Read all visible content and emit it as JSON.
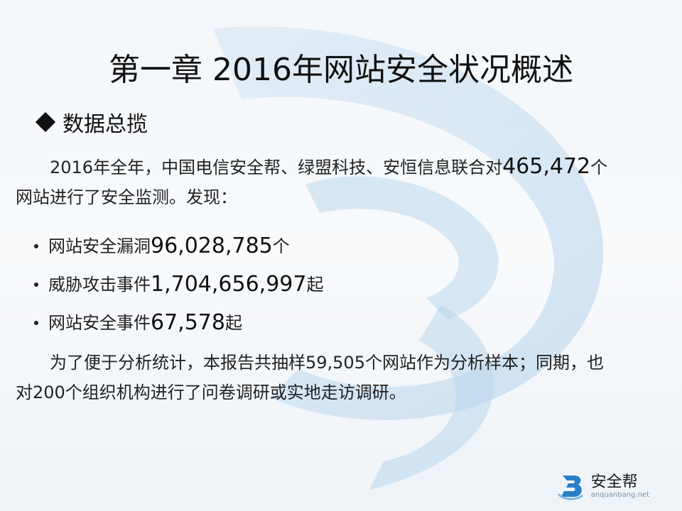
{
  "title": "第一章 2016年网站安全状况概述",
  "section": {
    "title": "数据总揽"
  },
  "intro": {
    "pre": "2016年全年，中国电信安全帮、绿盟科技、安恒信息联合对",
    "count": "465,472",
    "unit": "个",
    "line2": "网站进行了安全监测。发现："
  },
  "bullets": [
    {
      "label": "网站安全漏洞",
      "value": "96,028,785",
      "unit": "个"
    },
    {
      "label": "威胁攻击事件",
      "value": "1,704,656,997",
      "unit": "起"
    },
    {
      "label": "网站安全事件",
      "value": "67,578",
      "unit": "起"
    }
  ],
  "summary": {
    "line1": "为了便于分析统计，本报告共抽样59,505个网站作为分析样本；同期，也",
    "line2": "对200个组织机构进行了问卷调研或实地走访调研。"
  },
  "logo": {
    "name": "安全帮",
    "url": "anquanbang.net"
  },
  "colors": {
    "accent": "#2a7fc9",
    "shape": "#bcd8ef"
  }
}
